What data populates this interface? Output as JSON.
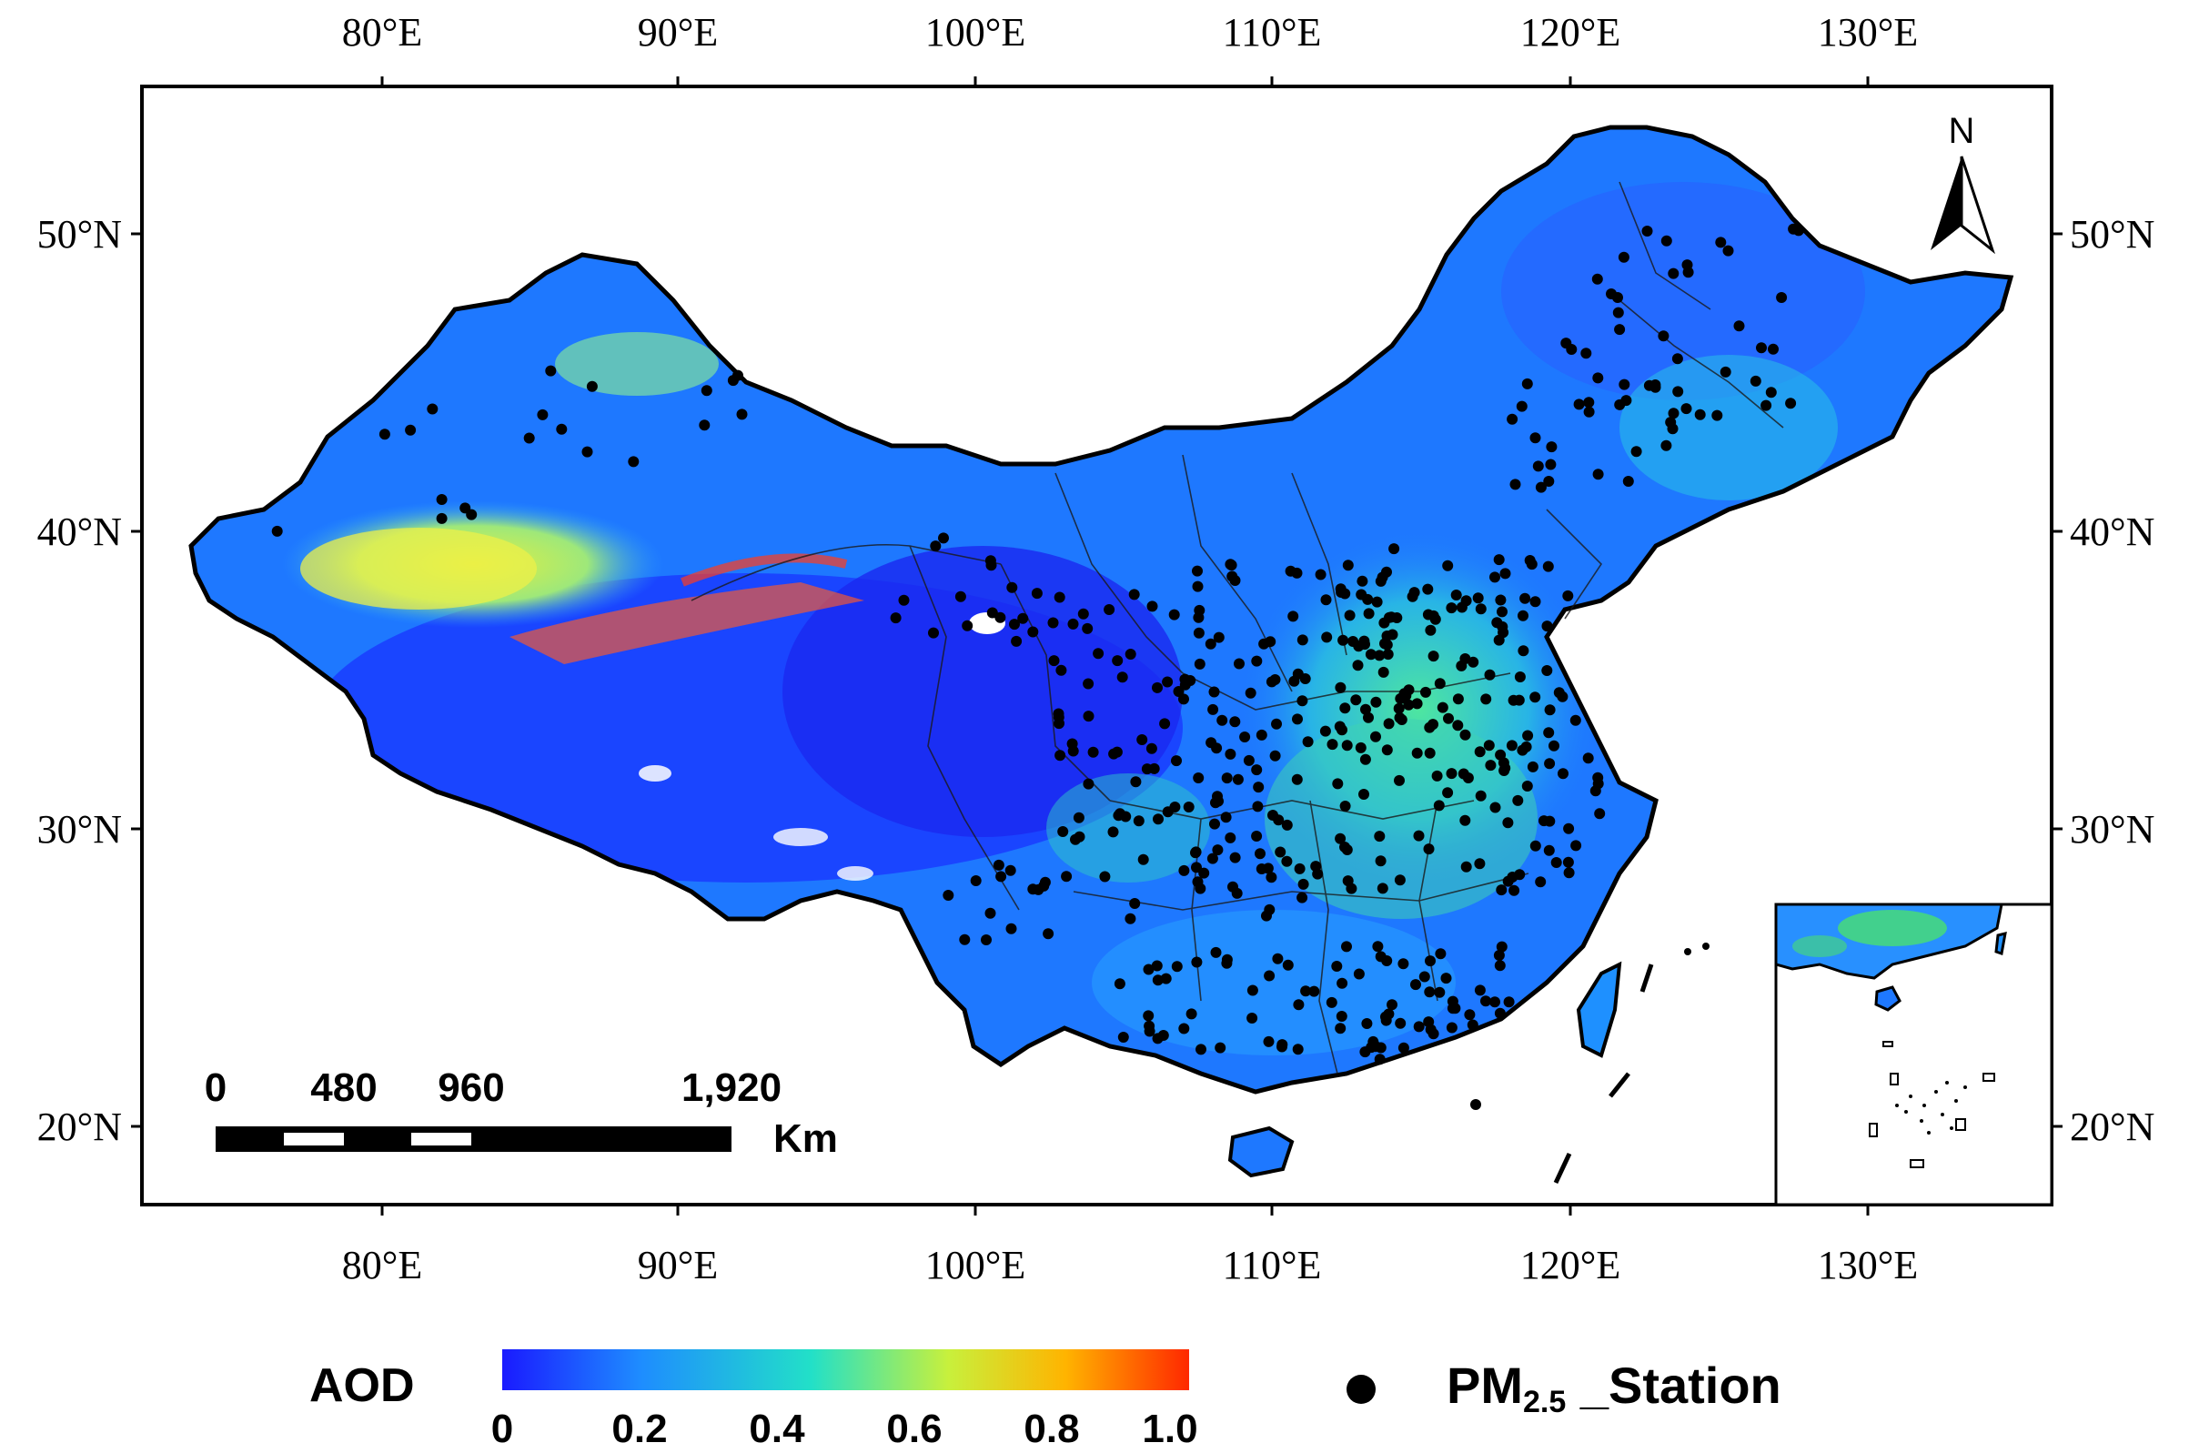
{
  "map": {
    "lon_labels": [
      "80°E",
      "90°E",
      "100°E",
      "110°E",
      "120°E",
      "130°E"
    ],
    "lat_labels": [
      "50°N",
      "40°N",
      "30°N",
      "20°N"
    ],
    "north_arrow": "N",
    "scale_bar": {
      "ticks": [
        "0",
        "480",
        "960",
        "1,920"
      ],
      "unit": "Km"
    }
  },
  "legend": {
    "aod": {
      "label": "AOD",
      "ticks": [
        "0",
        "0.2",
        "0.4",
        "0.6",
        "0.8",
        "1.0"
      ],
      "colors": [
        "#1a1aff",
        "#1e8cff",
        "#22e0c8",
        "#c8f03c",
        "#ffb400",
        "#ff2800"
      ]
    },
    "station": {
      "label_main": "PM",
      "label_sub": "2.5",
      "label_suffix": " _Station",
      "marker_color": "#000000"
    }
  }
}
